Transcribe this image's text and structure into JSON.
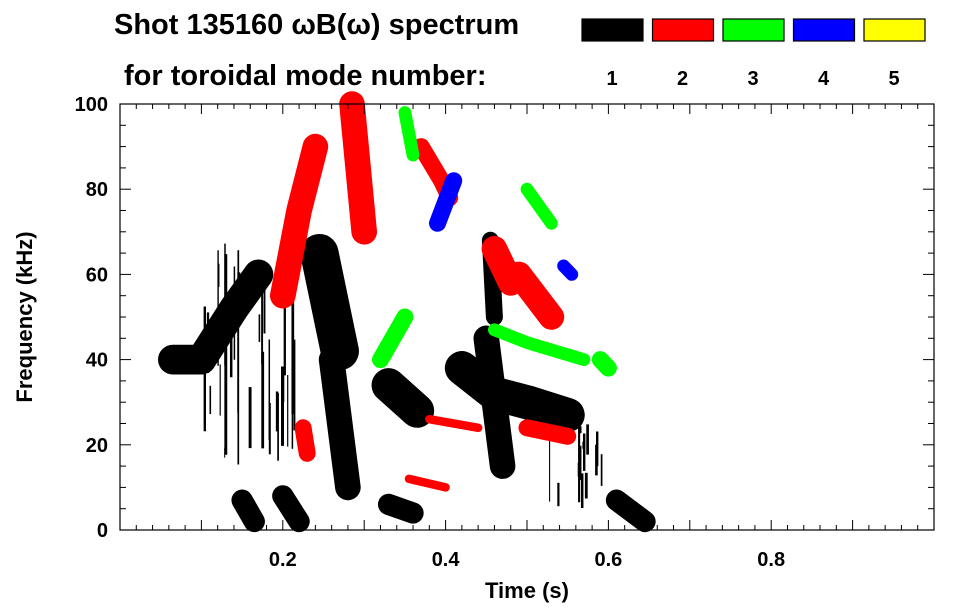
{
  "chart_data": {
    "type": "heatmap",
    "title_line1": "Shot 135160 ωB(ω) spectrum",
    "title_line2": "for toroidal mode number:",
    "xlabel": "Time (s)",
    "ylabel": "Frequency (kHz)",
    "xlim": [
      0.0,
      1.0
    ],
    "ylim": [
      0,
      100
    ],
    "x_ticks": [
      0.2,
      0.4,
      0.6,
      0.8
    ],
    "x_tick_labels": [
      "0.2",
      "0.4",
      "0.6",
      "0.8"
    ],
    "y_ticks": [
      0,
      20,
      40,
      60,
      80,
      100
    ],
    "y_tick_labels": [
      "0",
      "20",
      "40",
      "60",
      "80",
      "100"
    ],
    "legend": {
      "placement": "top-right",
      "entries": [
        {
          "label": "1",
          "color": "#000000"
        },
        {
          "label": "2",
          "color": "#ff0000"
        },
        {
          "label": "3",
          "color": "#00ff00"
        },
        {
          "label": "4",
          "color": "#0000ff"
        },
        {
          "label": "5",
          "color": "#ffff00"
        }
      ]
    },
    "features": [
      {
        "mode": 1,
        "kind": "band",
        "t": [
          0.065,
          0.1,
          0.14,
          0.17
        ],
        "f": [
          40,
          40,
          52,
          60
        ],
        "width_khz": 7
      },
      {
        "mode": 1,
        "kind": "band",
        "t": [
          0.245,
          0.27
        ],
        "f": [
          65,
          42
        ],
        "width_khz": 9
      },
      {
        "mode": 1,
        "kind": "band",
        "t": [
          0.26,
          0.28
        ],
        "f": [
          40,
          10
        ],
        "width_khz": 6
      },
      {
        "mode": 1,
        "kind": "band",
        "t": [
          0.33,
          0.365
        ],
        "f": [
          34,
          28
        ],
        "width_khz": 8
      },
      {
        "mode": 1,
        "kind": "band",
        "t": [
          0.42,
          0.46,
          0.5,
          0.55
        ],
        "f": [
          38,
          32,
          30,
          27
        ],
        "width_khz": 8
      },
      {
        "mode": 1,
        "kind": "band",
        "t": [
          0.45,
          0.47
        ],
        "f": [
          45,
          15
        ],
        "width_khz": 6
      },
      {
        "mode": 1,
        "kind": "band",
        "t": [
          0.455,
          0.46
        ],
        "f": [
          68,
          50
        ],
        "width_khz": 4
      },
      {
        "mode": 1,
        "kind": "band",
        "t": [
          0.33,
          0.36
        ],
        "f": [
          6,
          4
        ],
        "width_khz": 5
      },
      {
        "mode": 1,
        "kind": "band",
        "t": [
          0.61,
          0.645
        ],
        "f": [
          7,
          2
        ],
        "width_khz": 5
      },
      {
        "mode": 1,
        "kind": "band",
        "t": [
          0.15,
          0.165
        ],
        "f": [
          7,
          2
        ],
        "width_khz": 5
      },
      {
        "mode": 1,
        "kind": "band",
        "t": [
          0.2,
          0.22
        ],
        "f": [
          8,
          2
        ],
        "width_khz": 5
      },
      {
        "mode": 1,
        "kind": "streaks",
        "t_range": [
          0.1,
          0.27
        ],
        "f_range": [
          15,
          68
        ],
        "count": 34
      },
      {
        "mode": 1,
        "kind": "streaks",
        "t_range": [
          0.52,
          0.62
        ],
        "f_range": [
          5,
          25
        ],
        "count": 14
      },
      {
        "mode": 2,
        "kind": "band",
        "t": [
          0.2,
          0.22,
          0.24
        ],
        "f": [
          55,
          75,
          90
        ],
        "width_khz": 6
      },
      {
        "mode": 2,
        "kind": "band",
        "t": [
          0.285,
          0.3
        ],
        "f": [
          100,
          70
        ],
        "width_khz": 6
      },
      {
        "mode": 2,
        "kind": "band",
        "t": [
          0.37,
          0.395,
          0.405
        ],
        "f": [
          90,
          82,
          78
        ],
        "width_khz": 4
      },
      {
        "mode": 2,
        "kind": "band",
        "t": [
          0.46,
          0.48
        ],
        "f": [
          66,
          58
        ],
        "width_khz": 6
      },
      {
        "mode": 2,
        "kind": "band",
        "t": [
          0.49,
          0.53
        ],
        "f": [
          60,
          50
        ],
        "width_khz": 6
      },
      {
        "mode": 2,
        "kind": "band",
        "t": [
          0.38,
          0.44
        ],
        "f": [
          26,
          24
        ],
        "width_khz": 2
      },
      {
        "mode": 2,
        "kind": "band",
        "t": [
          0.5,
          0.55
        ],
        "f": [
          24,
          22
        ],
        "width_khz": 4
      },
      {
        "mode": 2,
        "kind": "band",
        "t": [
          0.355,
          0.4
        ],
        "f": [
          12,
          10
        ],
        "width_khz": 2
      },
      {
        "mode": 2,
        "kind": "band",
        "t": [
          0.225,
          0.23
        ],
        "f": [
          24,
          18
        ],
        "width_khz": 4
      },
      {
        "mode": 3,
        "kind": "band",
        "t": [
          0.32,
          0.35
        ],
        "f": [
          40,
          50
        ],
        "width_khz": 4
      },
      {
        "mode": 3,
        "kind": "band",
        "t": [
          0.46,
          0.5,
          0.57
        ],
        "f": [
          47,
          44,
          40
        ],
        "width_khz": 3
      },
      {
        "mode": 3,
        "kind": "band",
        "t": [
          0.5,
          0.53
        ],
        "f": [
          80,
          72
        ],
        "width_khz": 3
      },
      {
        "mode": 3,
        "kind": "band",
        "t": [
          0.59,
          0.6
        ],
        "f": [
          40,
          38
        ],
        "width_khz": 4
      },
      {
        "mode": 3,
        "kind": "band",
        "t": [
          0.35,
          0.36
        ],
        "f": [
          98,
          88
        ],
        "width_khz": 3
      },
      {
        "mode": 4,
        "kind": "band",
        "t": [
          0.39,
          0.41
        ],
        "f": [
          72,
          82
        ],
        "width_khz": 4
      },
      {
        "mode": 4,
        "kind": "band",
        "t": [
          0.545,
          0.555
        ],
        "f": [
          62,
          60
        ],
        "width_khz": 3
      }
    ]
  }
}
